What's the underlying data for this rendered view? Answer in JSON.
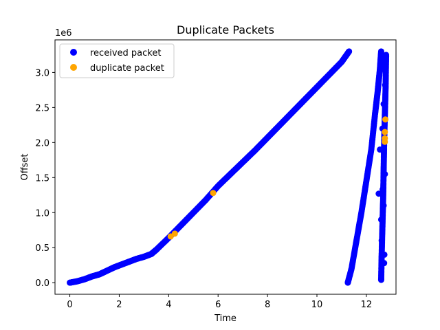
{
  "chart_data": {
    "type": "scatter",
    "title": "Duplicate Packets",
    "xlabel": "Time",
    "ylabel": "Offset",
    "y_scale_label": "1e6",
    "xlim": [
      -0.6,
      13.2
    ],
    "ylim": [
      -0.165,
      3.465
    ],
    "x_ticks": [
      0,
      2,
      4,
      6,
      8,
      10,
      12
    ],
    "x_tick_labels": [
      "0",
      "2",
      "4",
      "6",
      "8",
      "10",
      "12"
    ],
    "y_ticks": [
      0,
      0.5,
      1.0,
      1.5,
      2.0,
      2.5,
      3.0
    ],
    "y_tick_labels": [
      "0.0",
      "0.5",
      "1.0",
      "1.5",
      "2.0",
      "2.5",
      "3.0"
    ],
    "grid": false,
    "legend_position": "top-left",
    "series": [
      {
        "name": "received packet",
        "color": "#0000ff",
        "segments": [
          {
            "x": [
              0.0,
              0.3,
              0.6,
              0.9,
              1.2,
              1.5,
              1.8,
              2.1,
              2.4,
              2.7,
              3.0,
              3.3,
              3.5
            ],
            "y": [
              0.0,
              0.02,
              0.05,
              0.09,
              0.12,
              0.17,
              0.22,
              0.26,
              0.3,
              0.34,
              0.37,
              0.41,
              0.47
            ]
          },
          {
            "x": [
              3.5,
              4.0,
              4.5,
              5.0,
              5.5,
              6.0,
              6.5,
              7.0,
              7.5,
              8.0,
              8.5,
              9.0,
              9.5,
              10.0,
              10.5,
              11.0,
              11.3
            ],
            "y": [
              0.47,
              0.64,
              0.82,
              1.0,
              1.18,
              1.38,
              1.55,
              1.72,
              1.89,
              2.07,
              2.25,
              2.43,
              2.61,
              2.79,
              2.97,
              3.15,
              3.3
            ]
          },
          {
            "x": [
              11.25,
              11.4,
              11.6,
              11.8,
              12.0,
              12.2,
              12.35,
              12.45,
              12.55,
              12.6
            ],
            "y": [
              0.0,
              0.2,
              0.6,
              1.0,
              1.45,
              1.9,
              2.4,
              2.7,
              3.05,
              3.3
            ]
          },
          {
            "x": [
              12.6,
              12.62,
              12.65,
              12.68,
              12.7,
              12.72,
              12.75,
              12.78,
              12.8
            ],
            "y": [
              0.04,
              0.4,
              0.8,
              1.2,
              1.6,
              2.0,
              2.4,
              2.8,
              3.25
            ]
          }
        ],
        "points": [
          [
            12.5,
            1.27
          ],
          [
            12.55,
            1.9
          ],
          [
            12.7,
            2.55
          ],
          [
            12.6,
            0.05
          ],
          [
            12.75,
            1.55
          ],
          [
            12.6,
            0.9
          ],
          [
            12.73,
            0.4
          ],
          [
            12.66,
            1.33
          ],
          [
            12.65,
            2.2
          ],
          [
            12.7,
            1.1
          ],
          [
            12.76,
            2.82
          ],
          [
            12.78,
            3.02
          ],
          [
            12.72,
            0.28
          ],
          [
            12.62,
            0.6
          ],
          [
            12.8,
            3.23
          ]
        ]
      },
      {
        "name": "duplicate packet",
        "color": "#ffa500",
        "points": [
          [
            4.08,
            0.66
          ],
          [
            4.25,
            0.7
          ],
          [
            5.8,
            1.28
          ],
          [
            12.75,
            2.01
          ],
          [
            12.75,
            2.06
          ],
          [
            12.75,
            2.15
          ],
          [
            12.77,
            2.33
          ]
        ]
      }
    ]
  }
}
